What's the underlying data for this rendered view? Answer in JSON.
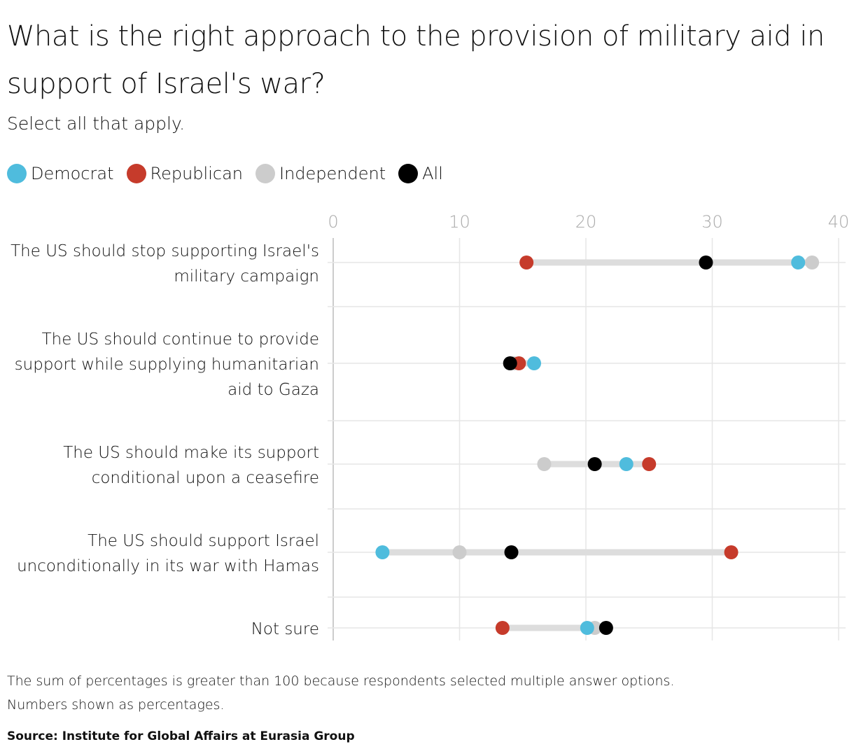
{
  "title": "What is the right approach to the provision of military aid in support of Israel's war?",
  "subtitle": "Select all that apply.",
  "footnotes": [
    "The sum of percentages is greater than 100 because respondents selected multiple answer options.",
    "Numbers shown as percentages."
  ],
  "source": "Source: Institute for Global Affairs at Eurasia Group",
  "chart_data": {
    "type": "dot-range",
    "xlim": [
      0,
      40
    ],
    "xticks": [
      "0",
      "10",
      "20",
      "30",
      "40"
    ],
    "grid": true,
    "legend_position": "top-left",
    "categories": [
      "The US should stop supporting Israel's military campaign",
      "The US should continue to provide support while supplying humanitarian aid to Gaza",
      "The US should make its support conditional upon a ceasefire",
      "The US should support Israel unconditionally in its war with Hamas",
      "Not sure"
    ],
    "series": [
      {
        "name": "Democrat",
        "color": "#4fbcdd",
        "values": [
          36.8,
          15.9,
          23.2,
          3.9,
          20.1
        ]
      },
      {
        "name": "Republican",
        "color": "#c63b2b",
        "values": [
          15.3,
          14.7,
          25.0,
          31.5,
          13.4
        ]
      },
      {
        "name": "Independent",
        "color": "#cccccc",
        "values": [
          37.9,
          14.3,
          16.7,
          10.0,
          20.7
        ]
      },
      {
        "name": "All",
        "color": "#000000",
        "values": [
          29.5,
          14.0,
          20.7,
          14.1,
          21.6
        ]
      }
    ]
  }
}
